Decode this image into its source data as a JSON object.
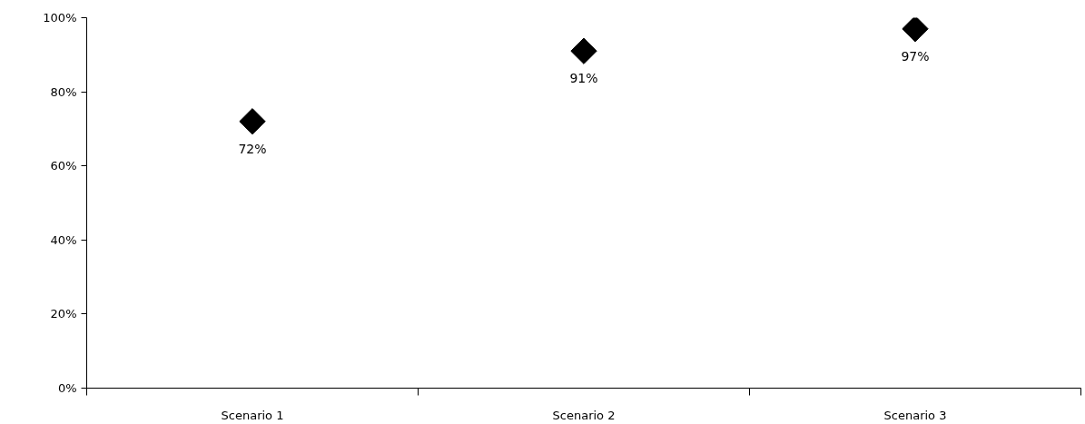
{
  "chart_data": {
    "type": "scatter",
    "categories": [
      "Scenario 1",
      "Scenario 2",
      "Scenario 3"
    ],
    "values": [
      72,
      91,
      97
    ],
    "value_labels": [
      "72%",
      "91%",
      "97%"
    ],
    "color": "#000000",
    "marker": "diamond",
    "ylim": [
      0,
      100
    ],
    "yticks": [
      {
        "value": 0,
        "label": "0%"
      },
      {
        "value": 20,
        "label": "20%"
      },
      {
        "value": 40,
        "label": "40%"
      },
      {
        "value": 60,
        "label": "60%"
      },
      {
        "value": 80,
        "label": "80%"
      },
      {
        "value": 100,
        "label": "100%"
      }
    ],
    "grid": false
  }
}
